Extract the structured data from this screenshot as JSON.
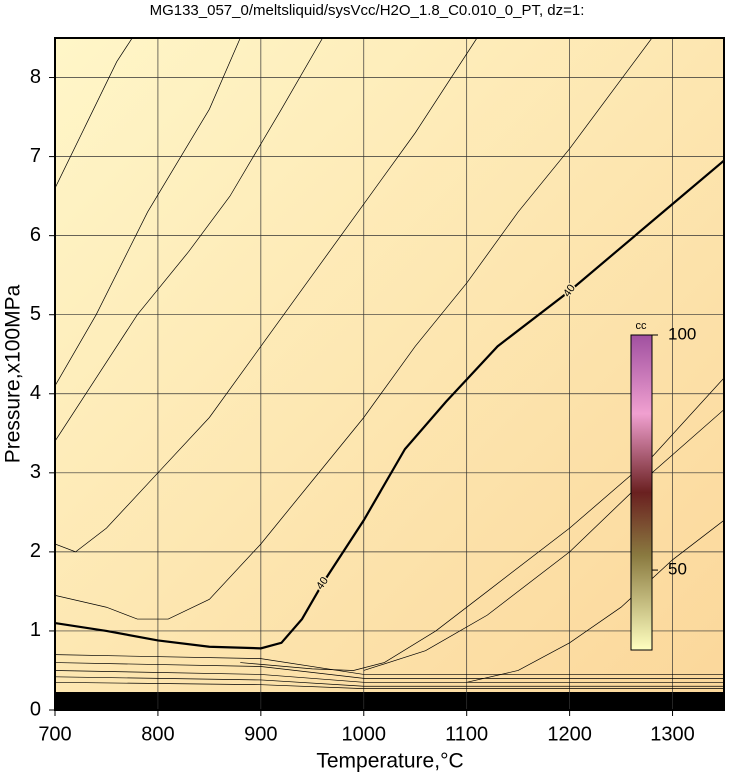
{
  "chart_data": {
    "type": "contour",
    "title": "MG133_057_0/meltsliquid/sysVcc/H2O_1.8_C0.010_0_PT, dz=1:",
    "x_label": "Temperature,°C",
    "y_label": "Pressure,x100MPa",
    "xlim": [
      700,
      1350
    ],
    "ylim": [
      0,
      8.5
    ],
    "xticks": [
      700,
      800,
      900,
      1000,
      1100,
      1200,
      1300
    ],
    "yticks": [
      0,
      1,
      2,
      3,
      4,
      5,
      6,
      7,
      8
    ],
    "grid": true,
    "contours": [
      {
        "level": 40,
        "x": [
          700,
          750,
          800,
          850,
          900,
          920,
          940,
          960,
          1000,
          1040,
          1080,
          1130,
          1200,
          1300,
          1350
        ],
        "y": [
          1.1,
          1.0,
          0.88,
          0.8,
          0.78,
          0.85,
          1.15,
          1.6,
          2.4,
          3.3,
          3.9,
          4.6,
          5.3,
          6.4,
          6.95
        ]
      }
    ],
    "thin_contours": [
      {
        "x": [
          700,
          730,
          760,
          775
        ],
        "y": [
          6.6,
          7.4,
          8.2,
          8.5
        ]
      },
      {
        "x": [
          700,
          740,
          790,
          850,
          880
        ],
        "y": [
          4.1,
          5.0,
          6.3,
          7.6,
          8.5
        ]
      },
      {
        "x": [
          700,
          740,
          780,
          830,
          870,
          920,
          960
        ],
        "y": [
          3.4,
          4.2,
          5.0,
          5.8,
          6.5,
          7.6,
          8.5
        ]
      },
      {
        "x": [
          700,
          720,
          750,
          800,
          850,
          900,
          950,
          1000,
          1050,
          1110
        ],
        "y": [
          2.1,
          2.0,
          2.3,
          3.0,
          3.7,
          4.6,
          5.5,
          6.4,
          7.3,
          8.5
        ]
      },
      {
        "x": [
          700,
          750,
          780,
          810,
          850,
          900,
          950,
          1000,
          1050,
          1100,
          1150,
          1200,
          1280
        ],
        "y": [
          1.45,
          1.3,
          1.15,
          1.15,
          1.4,
          2.1,
          2.9,
          3.7,
          4.6,
          5.4,
          6.3,
          7.1,
          8.5
        ]
      },
      {
        "x": [
          880,
          950,
          990,
          1020,
          1070,
          1120,
          1200,
          1280,
          1350
        ],
        "y": [
          0.6,
          0.52,
          0.5,
          0.6,
          1.0,
          1.5,
          2.3,
          3.2,
          4.2
        ]
      },
      {
        "x": [
          1000,
          1060,
          1120,
          1200,
          1280,
          1350
        ],
        "y": [
          0.5,
          0.75,
          1.2,
          2.0,
          3.0,
          3.8
        ]
      },
      {
        "x": [
          1100,
          1150,
          1200,
          1250,
          1300,
          1350
        ],
        "y": [
          0.35,
          0.5,
          0.85,
          1.3,
          1.9,
          2.4
        ]
      },
      {
        "x": [
          700,
          900,
          1000,
          1350
        ],
        "y": [
          0.7,
          0.65,
          0.45,
          0.45
        ]
      },
      {
        "x": [
          700,
          900,
          1000,
          1350
        ],
        "y": [
          0.6,
          0.55,
          0.4,
          0.4
        ]
      },
      {
        "x": [
          700,
          900,
          1000,
          1350
        ],
        "y": [
          0.5,
          0.45,
          0.35,
          0.35
        ]
      },
      {
        "x": [
          700,
          900,
          1000,
          1350
        ],
        "y": [
          0.42,
          0.38,
          0.3,
          0.3
        ]
      },
      {
        "x": [
          700,
          900,
          1000,
          1350
        ],
        "y": [
          0.35,
          0.32,
          0.27,
          0.27
        ]
      }
    ],
    "colorbar": {
      "label": "cc",
      "lim": [
        33,
        100
      ],
      "ticks": [
        50,
        100
      ]
    }
  }
}
